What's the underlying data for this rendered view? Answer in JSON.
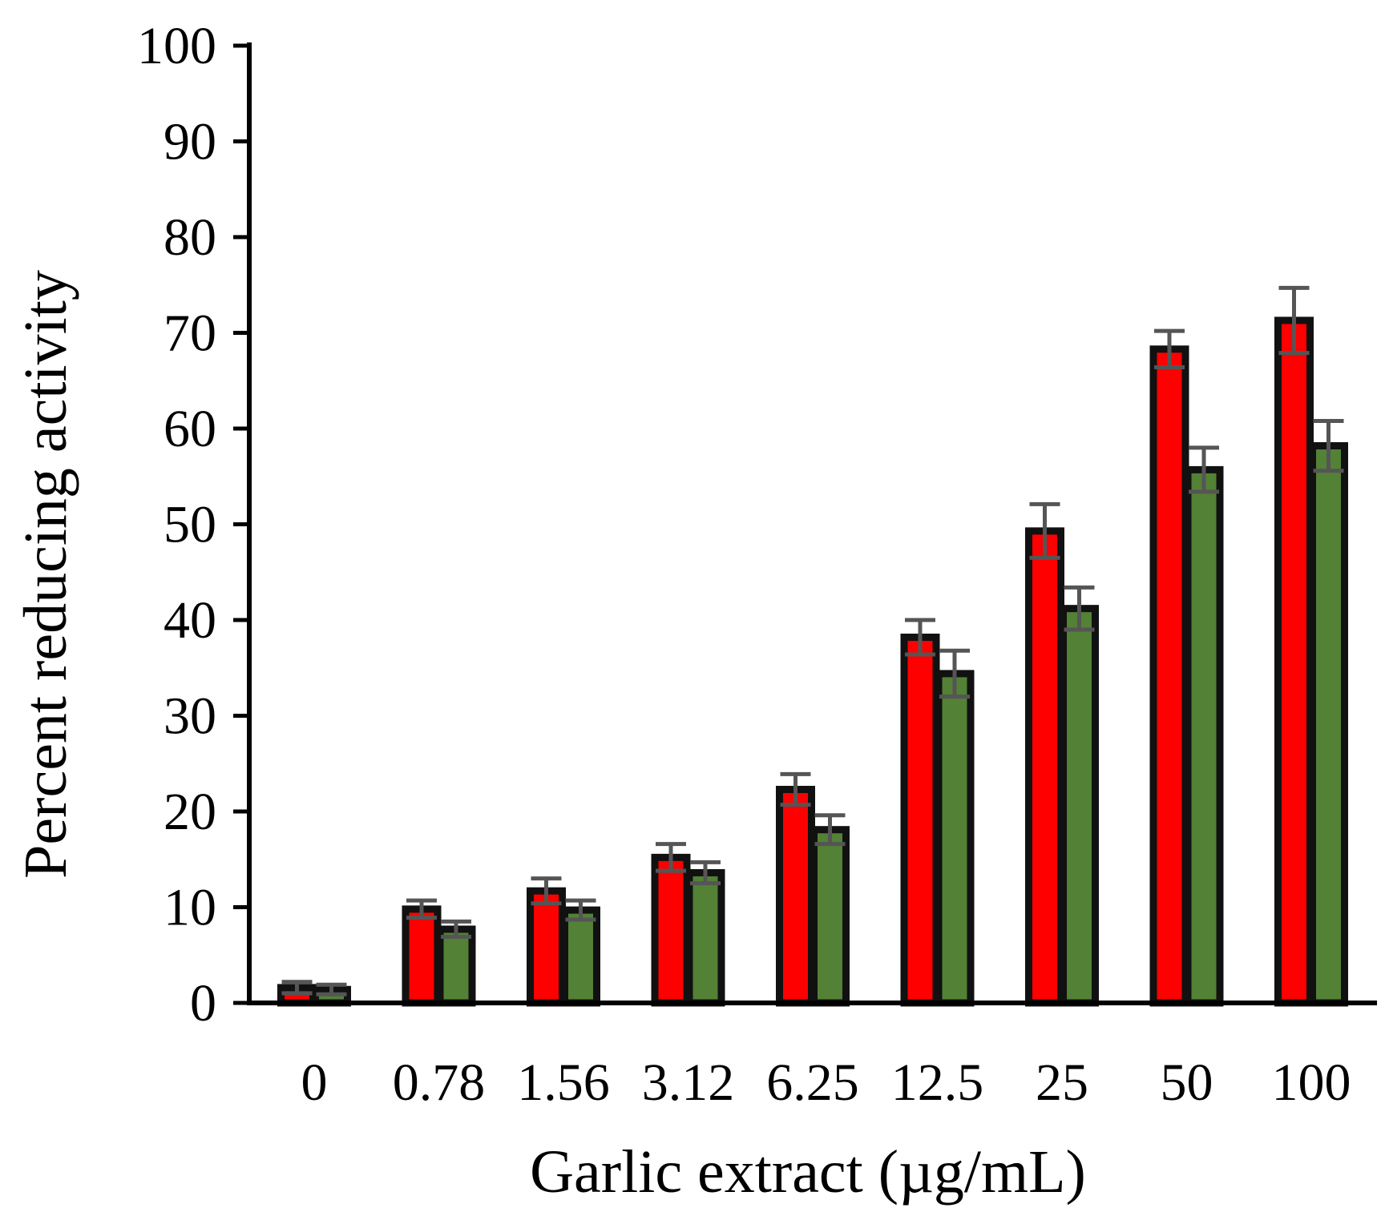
{
  "chart_data": {
    "type": "bar",
    "xlabel": "Garlic extract (µg/mL)",
    "ylabel": "Percent reducing activity",
    "ylim": [
      0,
      100
    ],
    "yticks": [
      0,
      10,
      20,
      30,
      40,
      50,
      60,
      70,
      80,
      90,
      100
    ],
    "categories": [
      "0",
      "0.78",
      "1.56",
      "3.12",
      "6.25",
      "12.5",
      "25",
      "50",
      "100"
    ],
    "grid": false,
    "legend": "none",
    "series": [
      {
        "color": "#ff0000",
        "values": [
          1.6,
          9.8,
          11.7,
          15.2,
          22.3,
          38.2,
          49.3,
          68.3,
          71.3
        ],
        "errors": [
          0.6,
          0.9,
          1.3,
          1.4,
          1.6,
          1.8,
          2.8,
          1.9,
          3.4
        ]
      },
      {
        "color": "#538135",
        "values": [
          1.4,
          7.7,
          9.7,
          13.6,
          18.1,
          34.4,
          41.2,
          55.7,
          58.2
        ],
        "errors": [
          0.5,
          0.8,
          1.0,
          1.1,
          1.5,
          2.4,
          2.2,
          2.3,
          2.6
        ]
      }
    ]
  }
}
